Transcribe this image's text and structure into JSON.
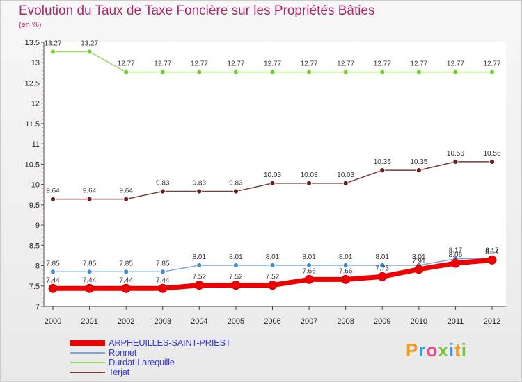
{
  "header": {
    "title": "Evolution du Taux de Taxe Foncière sur les Propriétés Bâties",
    "subtitle": "(en %)"
  },
  "logo": {
    "text": "Proxiti",
    "letters": [
      "P",
      "r",
      "o",
      "x",
      "i",
      "t",
      "i"
    ],
    "colors": [
      "#f39a1e",
      "#3a9ad9",
      "#e84a8c",
      "#7cc242",
      "#3a9ad9",
      "#f39a1e",
      "#7cc242"
    ]
  },
  "chart_data": {
    "type": "line",
    "title": "Evolution du Taux de Taxe Foncière sur les Propriétés Bâties",
    "ylabel": "(en %)",
    "xlabel": "",
    "categories": [
      "2000",
      "2001",
      "2002",
      "2003",
      "2004",
      "2005",
      "2006",
      "2007",
      "2008",
      "2009",
      "2010",
      "2011",
      "2012"
    ],
    "ylim": [
      7,
      13.5
    ],
    "yticks": [
      "7",
      "7.5",
      "8",
      "8.5",
      "9",
      "9.5",
      "10",
      "10.5",
      "11",
      "11.5",
      "12",
      "12.5",
      "13",
      "13.5"
    ],
    "legend_position": "bottom-left",
    "series": [
      {
        "name": "ARPHEUILLES-SAINT-PRIEST",
        "color": "#ee0000",
        "marker_color": "#ee0000",
        "values": [
          7.44,
          7.44,
          7.44,
          7.44,
          7.52,
          7.52,
          7.52,
          7.66,
          7.66,
          7.73,
          7.91,
          8.06,
          8.14
        ],
        "labels": [
          "7.44",
          "7.44",
          "7.44",
          "7.44",
          "7.52",
          "7.52",
          "7.52",
          "7.66",
          "7.66",
          "7.73",
          "7.91",
          "8.06",
          "8.14"
        ]
      },
      {
        "name": "Ronnet",
        "color": "#7aa6d6",
        "marker_color": "#3a8fd8",
        "values": [
          7.85,
          7.85,
          7.85,
          7.85,
          8.01,
          8.01,
          8.01,
          8.01,
          8.01,
          8.01,
          8.01,
          8.17,
          8.17
        ],
        "labels": [
          "7.85",
          "7.85",
          "7.85",
          "7.85",
          "8.01",
          "8.01",
          "8.01",
          "8.01",
          "8.01",
          "8.01",
          "8.01",
          "8.17",
          "8.17"
        ]
      },
      {
        "name": "Durdat-Larequille",
        "color": "#99dd66",
        "marker_color": "#77cc33",
        "values": [
          13.27,
          13.27,
          12.77,
          12.77,
          12.77,
          12.77,
          12.77,
          12.77,
          12.77,
          12.77,
          12.77,
          12.77,
          12.77
        ],
        "labels": [
          "13.27",
          "13.27",
          "12.77",
          "12.77",
          "12.77",
          "12.77",
          "12.77",
          "12.77",
          "12.77",
          "12.77",
          "12.77",
          "12.77",
          "12.77"
        ]
      },
      {
        "name": "Terjat",
        "color": "#7a3a3a",
        "marker_color": "#6a2020",
        "values": [
          9.64,
          9.64,
          9.64,
          9.83,
          9.83,
          9.83,
          10.03,
          10.03,
          10.03,
          10.35,
          10.35,
          10.56,
          10.56
        ],
        "labels": [
          "9.64",
          "9.64",
          "9.64",
          "9.83",
          "9.83",
          "9.83",
          "10.03",
          "10.03",
          "10.03",
          "10.35",
          "10.35",
          "10.56",
          "10.56"
        ]
      }
    ]
  }
}
